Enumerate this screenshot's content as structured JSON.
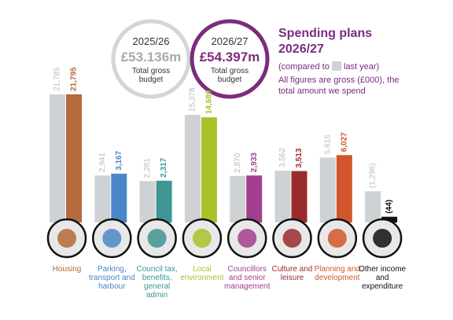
{
  "chart_data": {
    "type": "bar",
    "title": "Spending plans 2026/27",
    "legend_text": [
      "(compared to",
      "last year)"
    ],
    "note": "All figures are gross (£000), the total amount we spend",
    "scale": "sqrt",
    "budgets": [
      {
        "year": "2025/26",
        "amount": "£53.136m",
        "label": "Total gross budget",
        "color": "#aaaaaa",
        "ring": "#d3d5d6"
      },
      {
        "year": "2026/27",
        "amount": "£54.397m",
        "label": "Total gross budget",
        "color": "#7b2c7e",
        "ring": "#7b2c7e"
      }
    ],
    "categories": [
      "Housing",
      "Parking, transport and harbour",
      "Council tax, benefits, general admin",
      "Local environment",
      "Councillors and senior management",
      "Culture and leisure",
      "Planning and development",
      "Other income and expenditure"
    ],
    "series": [
      {
        "color": "#cfd2d4",
        "label_color": "#b8bbbd",
        "values": [
          21785,
          2941,
          2281,
          15378,
          2870,
          3562,
          5615,
          -1296
        ],
        "value_labels": [
          "21,785",
          "2,941",
          "2,281",
          "15,378",
          "2,870",
          "3,562",
          "5,615",
          "(1,296)"
        ]
      },
      {
        "colors": [
          "#b5693c",
          "#4a86c8",
          "#3f9494",
          "#a9c22a",
          "#a23f8e",
          "#9b2b2b",
          "#d2562b",
          "#111111"
        ],
        "values": [
          21795,
          3167,
          2317,
          14689,
          2933,
          3513,
          6027,
          -44
        ],
        "value_labels": [
          "21,795",
          "3,167",
          "2,317",
          "14,689",
          "2,933",
          "3,513",
          "6,027",
          "(44)"
        ]
      }
    ]
  }
}
